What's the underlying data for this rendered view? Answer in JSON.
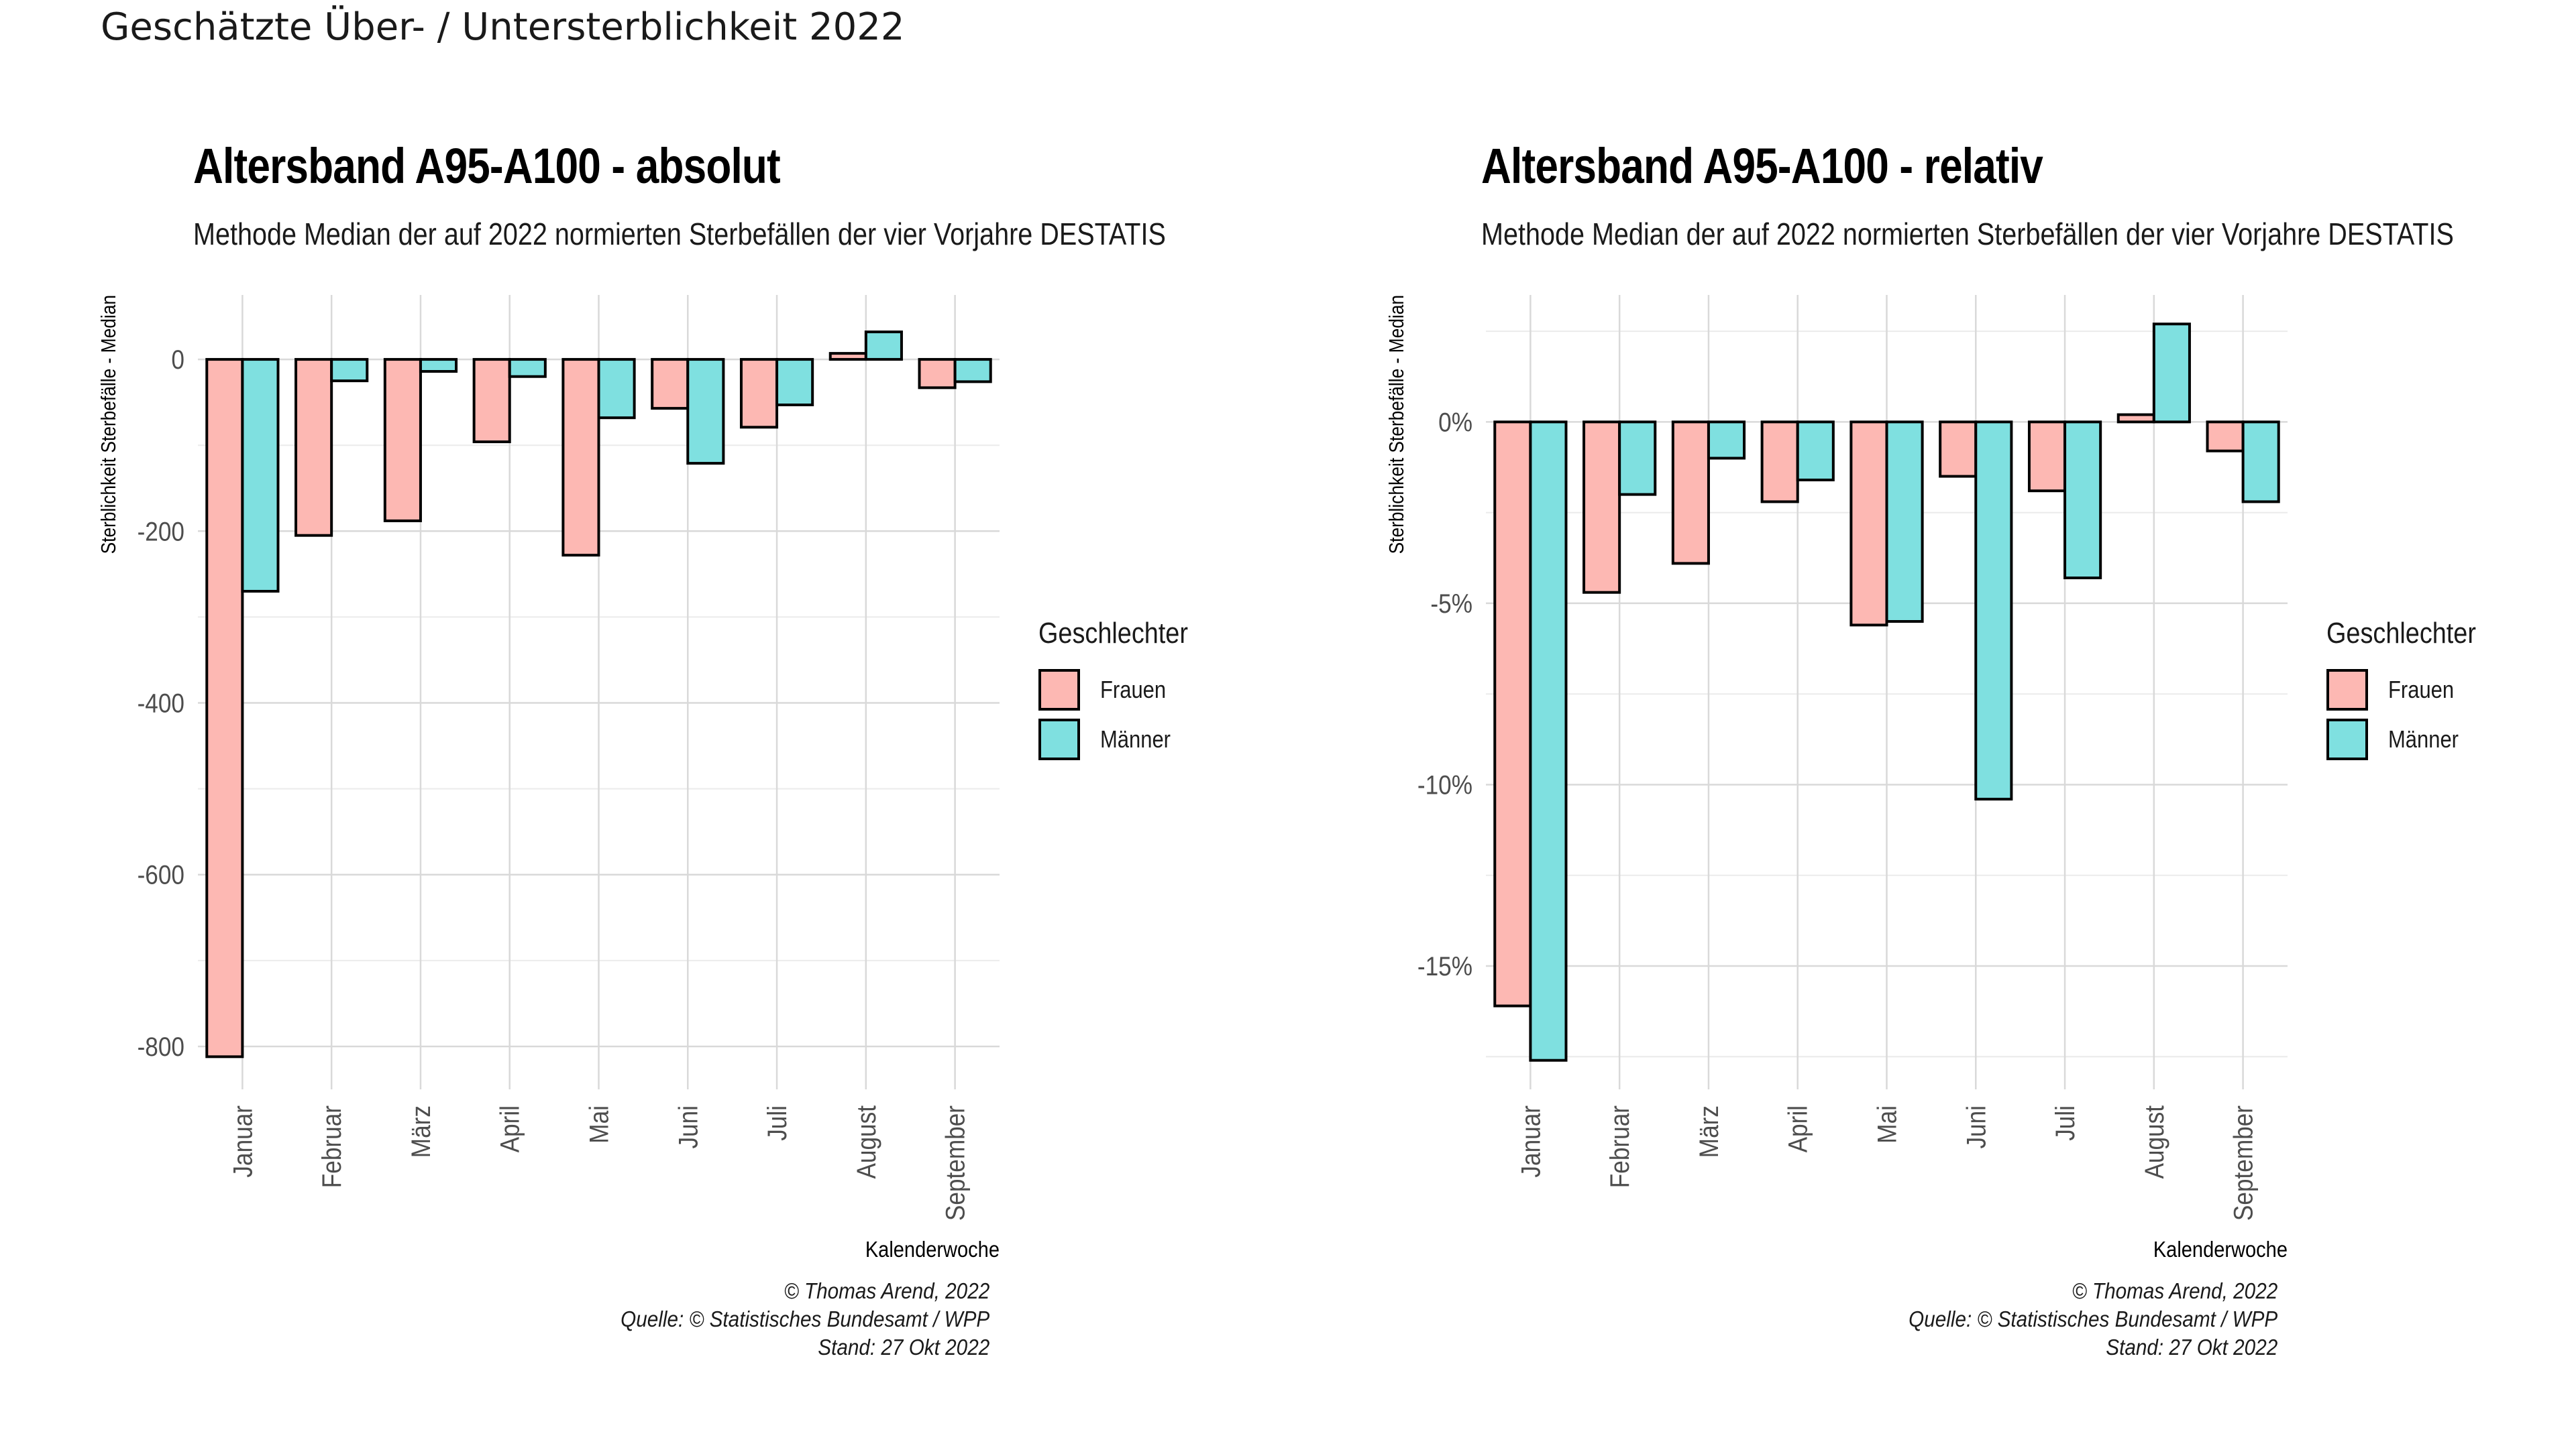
{
  "page_title": "Geschätzte Über- / Untersterblichkeit 2022",
  "panels": [
    {
      "title": "Altersband A95-A100 - absolut",
      "subtitle": "Methode Median der auf 2022 normierten Sterbefällen der vier Vorjahre DESTATIS",
      "legend_title": "Geschlechter",
      "caption_lines": [
        "© Thomas Arend, 2022",
        "Quelle: © Statistisches Bundesamt / WPP",
        "Stand: 27 Okt 2022"
      ]
    },
    {
      "title": "Altersband A95-A100 - relativ",
      "subtitle": "Methode Median der auf 2022 normierten Sterbefällen der vier Vorjahre DESTATIS",
      "legend_title": "Geschlechter",
      "caption_lines": [
        "© Thomas Arend, 2022",
        "Quelle: © Statistisches Bundesamt / WPP",
        "Stand: 27 Okt 2022"
      ]
    }
  ],
  "chart_data": [
    {
      "type": "bar",
      "title": "Altersband A95-A100 - absolut",
      "subtitle": "Methode Median der auf 2022 normierten Sterbefällen der vier Vorjahre DESTATIS",
      "xlabel": "Kalenderwoche",
      "ylabel": "Sterblichkeit Sterbefälle - Median",
      "categories": [
        "Januar",
        "Februar",
        "März",
        "April",
        "Mai",
        "Juni",
        "Juli",
        "August",
        "September"
      ],
      "series": [
        {
          "name": "Frauen",
          "color": "#FDB8B3",
          "values": [
            -812,
            -205,
            -188,
            -96,
            -228,
            -57,
            -79,
            7,
            -33
          ]
        },
        {
          "name": "Männer",
          "color": "#7FE0E0",
          "values": [
            -270,
            -25,
            -14,
            -20,
            -68,
            -121,
            -53,
            32,
            -26
          ]
        }
      ],
      "ylim": [
        -850,
        75
      ],
      "yticks": [
        0,
        -200,
        -400,
        -600,
        -800
      ],
      "ytick_labels": [
        "0",
        "-200",
        "-400",
        "-600",
        "-800"
      ],
      "grid": true,
      "legend": {
        "title": "Geschlechter",
        "position": "right"
      }
    },
    {
      "type": "bar",
      "title": "Altersband A95-A100 - relativ",
      "subtitle": "Methode Median der auf 2022 normierten Sterbefällen der vier Vorjahre DESTATIS",
      "xlabel": "Kalenderwoche",
      "ylabel": "Sterblichkeit Sterbefälle - Median",
      "categories": [
        "Januar",
        "Februar",
        "März",
        "April",
        "Mai",
        "Juni",
        "Juli",
        "August",
        "September"
      ],
      "series": [
        {
          "name": "Frauen",
          "color": "#FDB8B3",
          "values": [
            -16.1,
            -4.7,
            -3.9,
            -2.2,
            -5.6,
            -1.5,
            -1.9,
            0.2,
            -0.8
          ]
        },
        {
          "name": "Männer",
          "color": "#7FE0E0",
          "values": [
            -17.6,
            -2.0,
            -1.0,
            -1.6,
            -5.5,
            -10.4,
            -4.3,
            2.7,
            -2.2
          ]
        }
      ],
      "ylim": [
        -18.4,
        3.5
      ],
      "yticks": [
        0,
        -5,
        -10,
        -15
      ],
      "ytick_labels": [
        "0%",
        "-5%",
        "-10%",
        "-15%"
      ],
      "grid": true,
      "legend": {
        "title": "Geschlechter",
        "position": "right"
      }
    }
  ]
}
